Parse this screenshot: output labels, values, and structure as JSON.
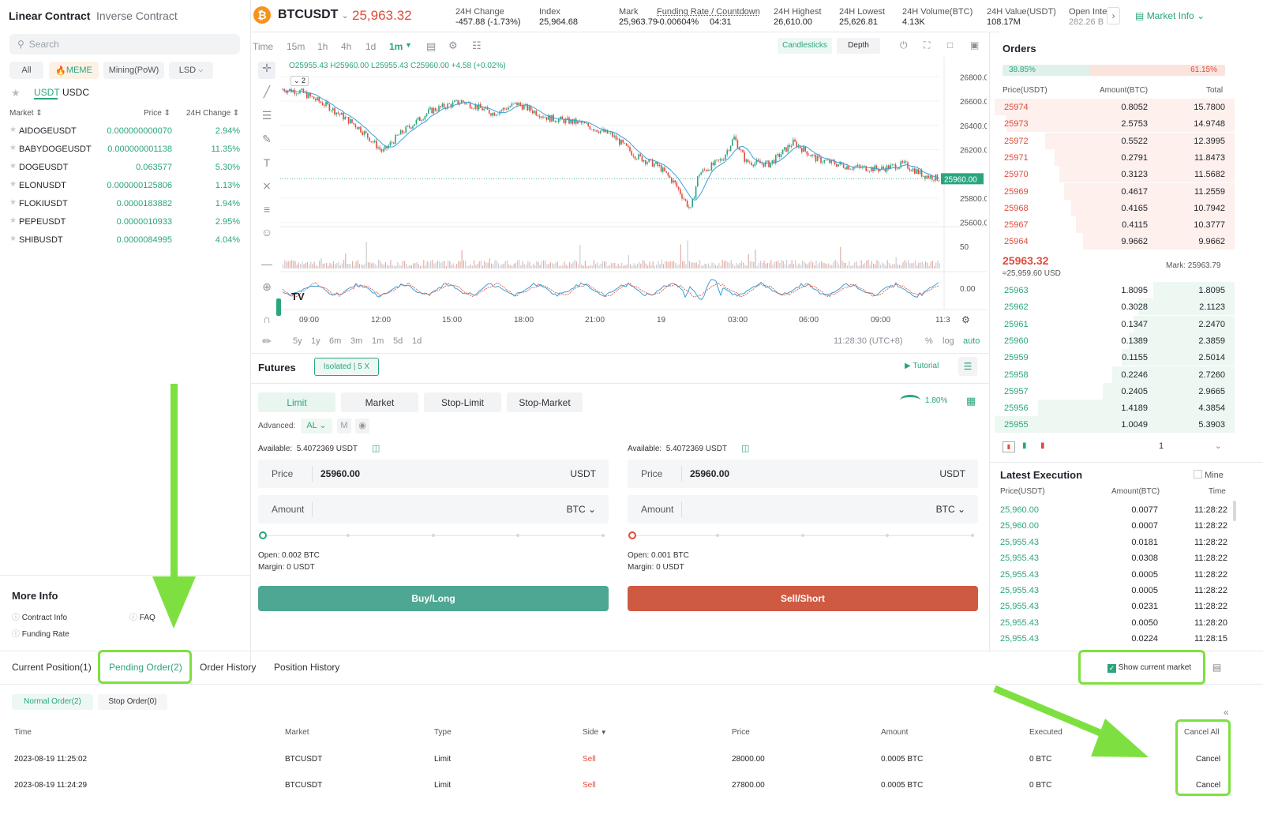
{
  "left": {
    "tabs": [
      "Linear Contract",
      "Inverse Contract"
    ],
    "search_placeholder": "Search",
    "chips": [
      "All",
      "MEME",
      "Mining(PoW)",
      "LSD"
    ],
    "quote_tabs": [
      "USDT",
      "USDC"
    ],
    "headers": {
      "market": "Market",
      "price": "Price",
      "change": "24H Change"
    },
    "markets": [
      {
        "symbol": "AIDOGEUSDT",
        "price": "0.000000000070",
        "change": "2.94%"
      },
      {
        "symbol": "BABYDOGEUSDT",
        "price": "0.000000001138",
        "change": "11.35%"
      },
      {
        "symbol": "DOGEUSDT",
        "price": "0.063577",
        "change": "5.30%"
      },
      {
        "symbol": "ELONUSDT",
        "price": "0.000000125806",
        "change": "1.13%"
      },
      {
        "symbol": "FLOKIUSDT",
        "price": "0.0000183882",
        "change": "1.94%"
      },
      {
        "symbol": "PEPEUSDT",
        "price": "0.0000010933",
        "change": "2.95%"
      },
      {
        "symbol": "SHIBUSDT",
        "price": "0.0000084995",
        "change": "4.04%"
      }
    ],
    "more_info": {
      "title": "More Info",
      "contract_info": "Contract Info",
      "faq": "FAQ",
      "funding_rate": "Funding Rate"
    }
  },
  "header": {
    "symbol": "BTCUSDT",
    "price": "25,963.32",
    "stats": [
      {
        "label": "24H Change",
        "value": "-457.88 (-1.73%)"
      },
      {
        "label": "Index",
        "value": "25,964.68"
      },
      {
        "label": "Mark",
        "value": "25,963.79"
      },
      {
        "label": "Funding Rate / Countdown",
        "value": "-0.00604%",
        "value2": "04:31"
      },
      {
        "label": "24H Highest",
        "value": "26,610.00"
      },
      {
        "label": "24H Lowest",
        "value": "25,626.81"
      },
      {
        "label": "24H Volume(BTC)",
        "value": "4.13K"
      },
      {
        "label": "24H Value(USDT)",
        "value": "108.17M"
      },
      {
        "label": "Open Inte",
        "value": "282.26 B"
      }
    ],
    "market_info": "Market Info"
  },
  "chart": {
    "intervals": [
      "Time",
      "15m",
      "1h",
      "4h",
      "1d",
      "1m"
    ],
    "views": [
      "Candlesticks",
      "Depth"
    ],
    "ohlc": "O25955.43 H25960.00 L25955.43 C25960.00 +4.58 (+0.02%)",
    "badge": "2",
    "price_axis": [
      "26800.00",
      "26600.00",
      "26400.00",
      "26200.00",
      "25800.00",
      "25600.00"
    ],
    "last_price": "25960.00",
    "vol_axis": "50",
    "osc_axis": "0.00",
    "time_axis": [
      "09:00",
      "12:00",
      "15:00",
      "18:00",
      "21:00",
      "19",
      "03:00",
      "06:00",
      "09:00",
      "11:3"
    ],
    "ranges": [
      "5y",
      "1y",
      "6m",
      "3m",
      "1m",
      "5d",
      "1d"
    ],
    "clock": "11:28:30 (UTC+8)",
    "scale_opts": [
      "%",
      "log",
      "auto"
    ],
    "colors": {
      "up": "#2aa57f",
      "down": "#e04b3a",
      "ma": "#3aa0d8"
    }
  },
  "orderbook": {
    "title": "Orders",
    "buy_pct": "38.85%",
    "sell_pct": "61.15%",
    "headers": [
      "Price(USDT)",
      "Amount(BTC)",
      "Total"
    ],
    "asks": [
      {
        "price": "25974",
        "amount": "0.8052",
        "total": "15.7800",
        "depth": 1.0
      },
      {
        "price": "25973",
        "amount": "2.5753",
        "total": "14.9748",
        "depth": 0.95
      },
      {
        "price": "25972",
        "amount": "0.5522",
        "total": "12.3995",
        "depth": 0.79
      },
      {
        "price": "25971",
        "amount": "0.2791",
        "total": "11.8473",
        "depth": 0.75
      },
      {
        "price": "25970",
        "amount": "0.3123",
        "total": "11.5682",
        "depth": 0.73
      },
      {
        "price": "25969",
        "amount": "0.4617",
        "total": "11.2559",
        "depth": 0.71
      },
      {
        "price": "25968",
        "amount": "0.4165",
        "total": "10.7942",
        "depth": 0.68
      },
      {
        "price": "25967",
        "amount": "0.4115",
        "total": "10.3777",
        "depth": 0.66
      },
      {
        "price": "25964",
        "amount": "9.9662",
        "total": "9.9662",
        "depth": 0.63
      }
    ],
    "mid_price": "25963.32",
    "mid_usd": "≈25,959.60 USD",
    "mark": "Mark: 25963.79",
    "bids": [
      {
        "price": "25963",
        "amount": "1.8095",
        "total": "1.8095",
        "depth": 0.34
      },
      {
        "price": "25962",
        "amount": "0.3028",
        "total": "2.1123",
        "depth": 0.4
      },
      {
        "price": "25961",
        "amount": "0.1347",
        "total": "2.2470",
        "depth": 0.42
      },
      {
        "price": "25960",
        "amount": "0.1389",
        "total": "2.3859",
        "depth": 0.44
      },
      {
        "price": "25959",
        "amount": "0.1155",
        "total": "2.5014",
        "depth": 0.47
      },
      {
        "price": "25958",
        "amount": "0.2246",
        "total": "2.7260",
        "depth": 0.51
      },
      {
        "price": "25957",
        "amount": "0.2405",
        "total": "2.9665",
        "depth": 0.55
      },
      {
        "price": "25956",
        "amount": "1.4189",
        "total": "4.3854",
        "depth": 0.82
      },
      {
        "price": "25955",
        "amount": "1.0049",
        "total": "5.3903",
        "depth": 1.0
      }
    ],
    "precision": "1"
  },
  "executions": {
    "title": "Latest Execution",
    "mine": "Mine",
    "headers": [
      "Price(USDT)",
      "Amount(BTC)",
      "Time"
    ],
    "rows": [
      {
        "price": "25,960.00",
        "amount": "0.0077",
        "time": "11:28:22"
      },
      {
        "price": "25,960.00",
        "amount": "0.0007",
        "time": "11:28:22"
      },
      {
        "price": "25,955.43",
        "amount": "0.0181",
        "time": "11:28:22"
      },
      {
        "price": "25,955.43",
        "amount": "0.0308",
        "time": "11:28:22"
      },
      {
        "price": "25,955.43",
        "amount": "0.0005",
        "time": "11:28:22"
      },
      {
        "price": "25,955.43",
        "amount": "0.0005",
        "time": "11:28:22"
      },
      {
        "price": "25,955.43",
        "amount": "0.0231",
        "time": "11:28:22"
      },
      {
        "price": "25,955.43",
        "amount": "0.0050",
        "time": "11:28:20"
      },
      {
        "price": "25,955.43",
        "amount": "0.0224",
        "time": "11:28:15"
      }
    ]
  },
  "futures": {
    "title": "Futures",
    "mode": "Isolated | 5 X",
    "tutorial": "Tutorial",
    "order_types": [
      "Limit",
      "Market",
      "Stop-Limit",
      "Stop-Market"
    ],
    "ratio": "1.80%",
    "advanced": "Advanced:",
    "adv_al": "AL",
    "adv_m": "M",
    "buy": {
      "available": "5.4072369 USDT",
      "price": "25960.00",
      "price_unit": "USDT",
      "amount_unit": "BTC",
      "open": "0.002 BTC",
      "margin": "0 USDT",
      "button": "Buy/Long"
    },
    "sell": {
      "available": "5.4072369 USDT",
      "price": "25960.00",
      "price_unit": "USDT",
      "amount_unit": "BTC",
      "open": "0.001 BTC",
      "margin": "0 USDT",
      "button": "Sell/Short"
    },
    "labels": {
      "available": "Available:",
      "price": "Price",
      "amount": "Amount",
      "open": "Open:",
      "margin": "Margin:"
    }
  },
  "bottom": {
    "tabs": [
      "Current Position(1)",
      "Pending Order(2)",
      "Order History",
      "Position History"
    ],
    "show_current": "Show current market",
    "subtabs": [
      "Normal Order(2)",
      "Stop Order(0)"
    ],
    "headers": [
      "Time",
      "Market",
      "Type",
      "Side",
      "Price",
      "Amount",
      "Executed"
    ],
    "cancel_all": "Cancel All",
    "rows": [
      {
        "time": "2023-08-19 11:25:02",
        "market": "BTCUSDT",
        "type": "Limit",
        "side": "Sell",
        "price": "28000.00",
        "amount": "0.0005 BTC",
        "executed": "0 BTC",
        "cancel": "Cancel"
      },
      {
        "time": "2023-08-19 11:24:29",
        "market": "BTCUSDT",
        "type": "Limit",
        "side": "Sell",
        "price": "27800.00",
        "amount": "0.0005 BTC",
        "executed": "0 BTC",
        "cancel": "Cancel"
      }
    ]
  }
}
